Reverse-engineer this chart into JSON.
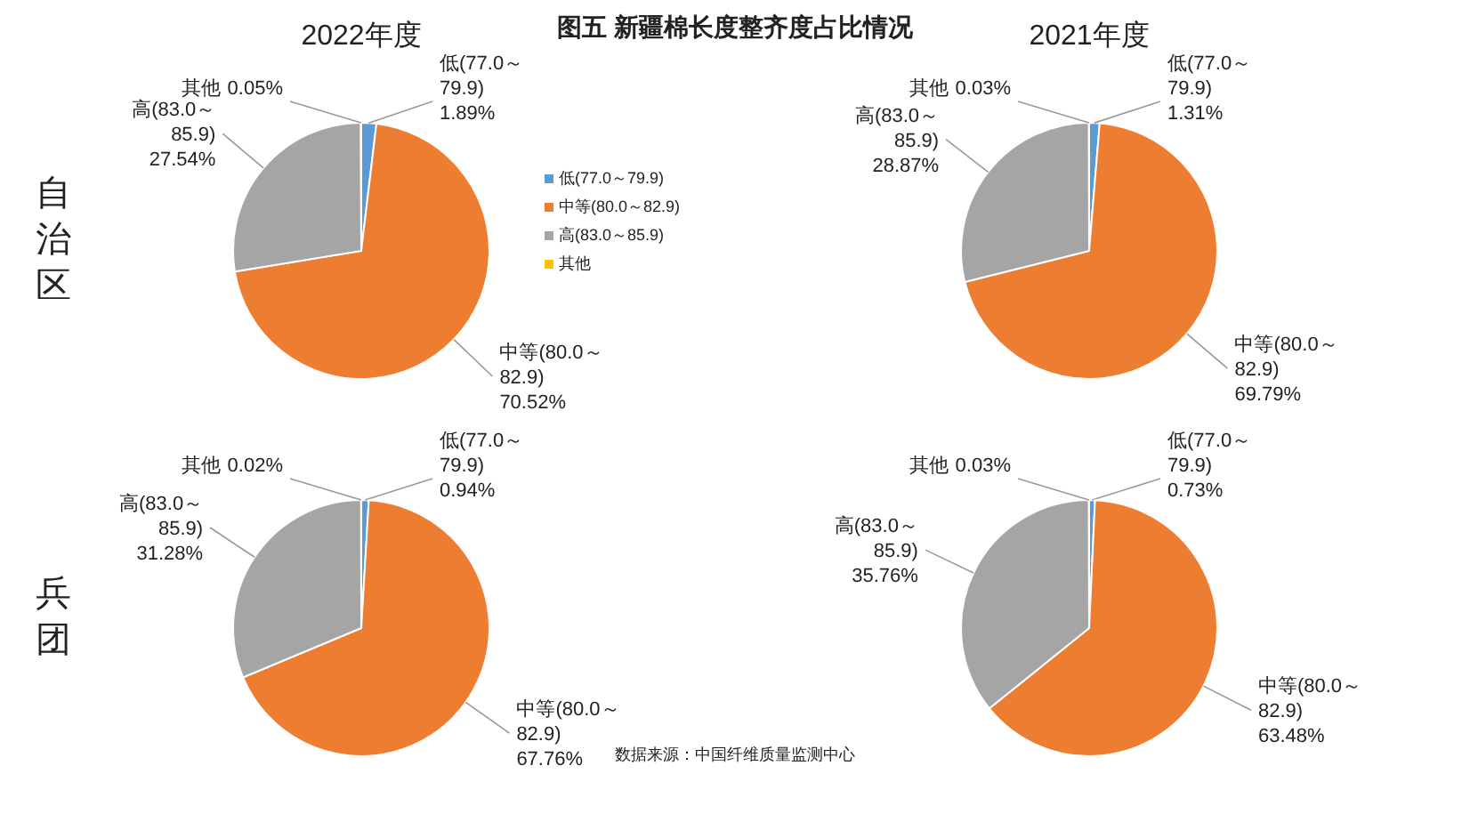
{
  "chart_data": [
    {
      "type": "other",
      "title": "图五 新疆棉长度整齐度占比情况",
      "annotations": [
        "数据来源：中国纤维质量监测中心"
      ]
    },
    {
      "type": "pie",
      "title": "2022年度",
      "annotations": [
        "自治区"
      ],
      "legend": "right",
      "categories": [
        "低(77.0～79.9)",
        "中等(80.0～82.9)",
        "高(83.0～85.9)",
        "其他"
      ],
      "values": [
        1.89,
        70.52,
        27.54,
        0.05
      ],
      "value_labels": [
        "1.89%",
        "70.52%",
        "27.54%",
        "0.05%"
      ],
      "colors": [
        "#5b9bd5",
        "#ed7d31",
        "#a5a5a5",
        "#ffc000"
      ]
    },
    {
      "type": "pie",
      "title": "2021年度",
      "categories": [
        "低(77.0～79.9)",
        "中等(80.0～82.9)",
        "高(83.0～85.9)",
        "其他"
      ],
      "values": [
        1.31,
        69.79,
        28.87,
        0.03
      ],
      "value_labels": [
        "1.31%",
        "69.79%",
        "28.87%",
        "0.03%"
      ],
      "colors": [
        "#5b9bd5",
        "#ed7d31",
        "#a5a5a5",
        "#ffc000"
      ]
    },
    {
      "type": "pie",
      "annotations": [
        "兵团"
      ],
      "categories": [
        "低(77.0～79.9)",
        "中等(80.0～82.9)",
        "高(83.0～85.9)",
        "其他"
      ],
      "values": [
        0.94,
        67.76,
        31.28,
        0.02
      ],
      "value_labels": [
        "0.94%",
        "67.76%",
        "31.28%",
        "0.02%"
      ],
      "colors": [
        "#5b9bd5",
        "#ed7d31",
        "#a5a5a5",
        "#ffc000"
      ]
    },
    {
      "type": "pie",
      "categories": [
        "低(77.0～79.9)",
        "中等(80.0～82.9)",
        "高(83.0～85.9)",
        "其他"
      ],
      "values": [
        0.73,
        63.48,
        35.76,
        0.03
      ],
      "value_labels": [
        "0.73%",
        "63.48%",
        "35.76%",
        "0.03%"
      ],
      "colors": [
        "#5b9bd5",
        "#ed7d31",
        "#a5a5a5",
        "#ffc000"
      ]
    }
  ]
}
